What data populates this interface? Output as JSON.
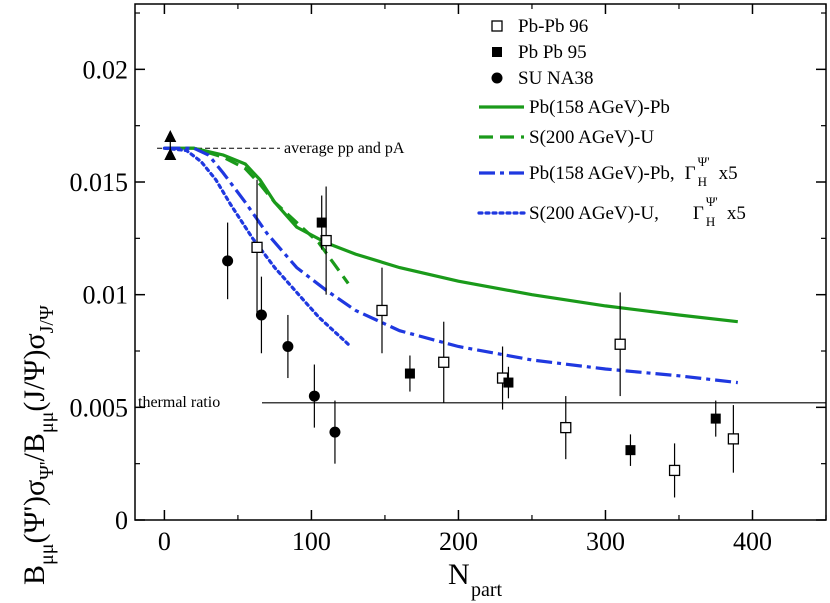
{
  "chart_data": {
    "type": "scatter",
    "title": "",
    "xlabel": "N",
    "xlabel_sub": "part",
    "ylabel_parts": [
      "B",
      "μμ",
      "(Ψ')σ",
      "Ψ'",
      "/B",
      "μμ",
      "(J/Ψ)σ",
      "J/Ψ"
    ],
    "xlim": [
      -20,
      450
    ],
    "ylim": [
      0,
      0.0229
    ],
    "x_ticks": [
      0,
      100,
      200,
      300,
      400
    ],
    "x_tick_labels": [
      "0",
      "100",
      "200",
      "300",
      "400"
    ],
    "y_ticks": [
      0,
      0.005,
      0.01,
      0.015,
      0.02
    ],
    "y_tick_labels": [
      "0",
      "0.005",
      "0.01",
      "0.015",
      "0.02"
    ],
    "legend_position": "top-right",
    "points_series": [
      {
        "name": "Pb-Pb 96",
        "marker": "open-square",
        "points": [
          {
            "x": 63,
            "y": 0.0121,
            "err": 0.003
          },
          {
            "x": 110,
            "y": 0.0124,
            "err": 0.0024
          },
          {
            "x": 148,
            "y": 0.0093,
            "err": 0.0019
          },
          {
            "x": 190,
            "y": 0.007,
            "err": 0.0018
          },
          {
            "x": 230,
            "y": 0.0063,
            "err": 0.0014
          },
          {
            "x": 273,
            "y": 0.0041,
            "err": 0.0014
          },
          {
            "x": 310,
            "y": 0.0078,
            "err": 0.0023
          },
          {
            "x": 347,
            "y": 0.0022,
            "err": 0.0012
          },
          {
            "x": 387,
            "y": 0.0036,
            "err": 0.0015
          }
        ]
      },
      {
        "name": "Pb Pb 95",
        "marker": "filled-square",
        "points": [
          {
            "x": 107,
            "y": 0.0132,
            "err": 0.0012
          },
          {
            "x": 167,
            "y": 0.0065,
            "err": 0.0008
          },
          {
            "x": 234,
            "y": 0.0061,
            "err": 0.0007
          },
          {
            "x": 317,
            "y": 0.0031,
            "err": 0.0007
          },
          {
            "x": 375,
            "y": 0.0045,
            "err": 0.0008
          }
        ]
      },
      {
        "name": "SU NA38",
        "marker": "filled-circle",
        "points": [
          {
            "x": 43,
            "y": 0.0115,
            "err": 0.0017
          },
          {
            "x": 66,
            "y": 0.0091,
            "err": 0.0017
          },
          {
            "x": 84,
            "y": 0.0077,
            "err": 0.0014
          },
          {
            "x": 102,
            "y": 0.0055,
            "err": 0.0014
          },
          {
            "x": 116,
            "y": 0.0039,
            "err": 0.0014
          }
        ]
      },
      {
        "name": "",
        "marker": "up-triangle",
        "points": [
          {
            "x": 4,
            "y": 0.017,
            "err": 0
          },
          {
            "x": 4,
            "y": 0.0162,
            "err": 0
          }
        ]
      }
    ],
    "line_series": [
      {
        "name": "Pb(158 AGeV)-Pb",
        "color": "#1a9a1a",
        "style": "solid",
        "x": [
          0,
          20,
          40,
          55,
          65,
          75,
          90,
          110,
          130,
          160,
          200,
          250,
          300,
          350,
          390
        ],
        "y": [
          0.0165,
          0.0165,
          0.0162,
          0.0158,
          0.0151,
          0.0141,
          0.013,
          0.0123,
          0.0118,
          0.0112,
          0.0106,
          0.01,
          0.0095,
          0.0091,
          0.0088
        ]
      },
      {
        "name": "S(200 AGeV)-U",
        "color": "#1a9a1a",
        "style": "dashed",
        "x": [
          0,
          20,
          40,
          55,
          65,
          75,
          90,
          105,
          115,
          125
        ],
        "y": [
          0.0165,
          0.0165,
          0.0161,
          0.0156,
          0.0149,
          0.0141,
          0.0132,
          0.0123,
          0.0114,
          0.0105
        ]
      },
      {
        "name": "Pb(158 AGeV)-Pb, Γ_H^Ψ' x5",
        "color": "#1f38e0",
        "style": "dashdot",
        "x": [
          0,
          20,
          30,
          40,
          55,
          70,
          90,
          110,
          130,
          160,
          200,
          250,
          300,
          350,
          390
        ],
        "y": [
          0.0165,
          0.0165,
          0.0162,
          0.0154,
          0.0141,
          0.0127,
          0.0112,
          0.0102,
          0.0093,
          0.0084,
          0.0077,
          0.0071,
          0.0067,
          0.0064,
          0.0061
        ]
      },
      {
        "name": "S(200 AGeV)-U,   Γ_H^Ψ' x5",
        "color": "#1f38e0",
        "style": "dotted",
        "x": [
          0,
          15,
          25,
          35,
          45,
          60,
          75,
          90,
          105,
          115,
          125
        ],
        "y": [
          0.0165,
          0.0164,
          0.0159,
          0.0151,
          0.014,
          0.0125,
          0.0112,
          0.0101,
          0.009,
          0.0084,
          0.0078
        ]
      }
    ],
    "reference_lines": [
      {
        "label": "average pp and pA",
        "y": 0.0165,
        "x_start": -5,
        "x_end": 45,
        "style": "dashed"
      },
      {
        "label": "thermal ratio",
        "y": 0.0052,
        "x_start": -20,
        "x_end": 450,
        "style": "solid"
      }
    ],
    "legend_entries": [
      {
        "label": "Pb-Pb 96",
        "kind": "open-square"
      },
      {
        "label": "Pb Pb 95",
        "kind": "filled-square"
      },
      {
        "label": "SU NA38",
        "kind": "filled-circle"
      },
      {
        "label": "Pb(158 AGeV)-Pb",
        "kind": "line",
        "series": 0
      },
      {
        "label": "S(200 AGeV)-U",
        "kind": "line",
        "series": 1
      },
      {
        "label": "Pb(158 AGeV)-Pb,",
        "kind": "line",
        "series": 2,
        "gamma": {
          "main": "Γ",
          "sub": "H",
          "sup": "Ψ'",
          "suffix": "x5"
        }
      },
      {
        "label": "S(200 AGeV)-U,",
        "kind": "line",
        "series": 3,
        "gamma": {
          "main": "Γ",
          "sub": "H",
          "sup": "Ψ'",
          "suffix": "x5"
        }
      }
    ]
  }
}
